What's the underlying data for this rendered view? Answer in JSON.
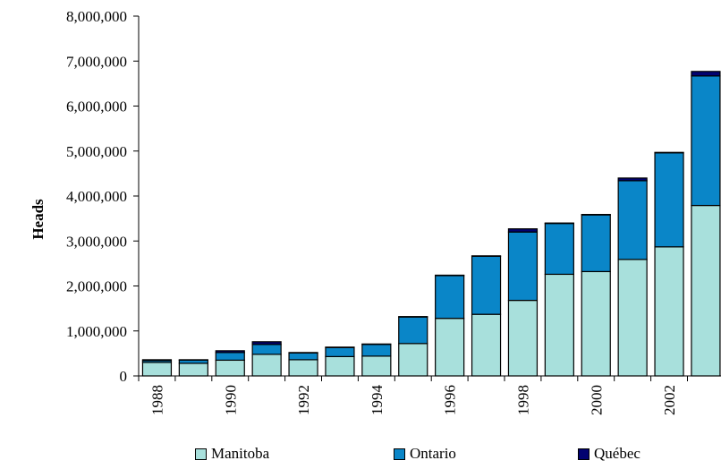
{
  "chart_data": {
    "type": "bar",
    "stacked": true,
    "title": "",
    "xlabel": "",
    "ylabel": "Heads",
    "ylim": [
      0,
      8000000
    ],
    "yticks": [
      0,
      1000000,
      2000000,
      3000000,
      4000000,
      5000000,
      6000000,
      7000000,
      8000000
    ],
    "ytick_labels": [
      "0",
      "1,000,000",
      "2,000,000",
      "3,000,000",
      "4,000,000",
      "5,000,000",
      "6,000,000",
      "7,000,000",
      "8,000,000"
    ],
    "categories": [
      "1988",
      "1989",
      "1990",
      "1991",
      "1992",
      "1993",
      "1994",
      "1995",
      "1996",
      "1997",
      "1998",
      "1999",
      "2000",
      "2001",
      "2002",
      "2003"
    ],
    "xtick_labels": [
      "1988",
      "1990",
      "1992",
      "1994",
      "1996",
      "1998",
      "2000",
      "2002"
    ],
    "series": [
      {
        "name": "Manitoba",
        "color": "#a8e0dc",
        "values": [
          300000,
          280000,
          350000,
          480000,
          360000,
          430000,
          440000,
          720000,
          1280000,
          1370000,
          1680000,
          2260000,
          2320000,
          2590000,
          2870000,
          3790000
        ]
      },
      {
        "name": "Ontario",
        "color": "#0a86c8",
        "values": [
          40000,
          70000,
          170000,
          220000,
          150000,
          200000,
          260000,
          590000,
          950000,
          1290000,
          1520000,
          1130000,
          1260000,
          1750000,
          2090000,
          2880000
        ]
      },
      {
        "name": "Québec",
        "color": "#020270",
        "values": [
          20000,
          10000,
          40000,
          60000,
          10000,
          10000,
          10000,
          10000,
          10000,
          10000,
          70000,
          10000,
          10000,
          60000,
          10000,
          100000
        ]
      }
    ],
    "grid": false,
    "legend_position": "bottom"
  },
  "legend": {
    "manitoba": "Manitoba",
    "ontario": "Ontario",
    "quebec": "Québec"
  }
}
